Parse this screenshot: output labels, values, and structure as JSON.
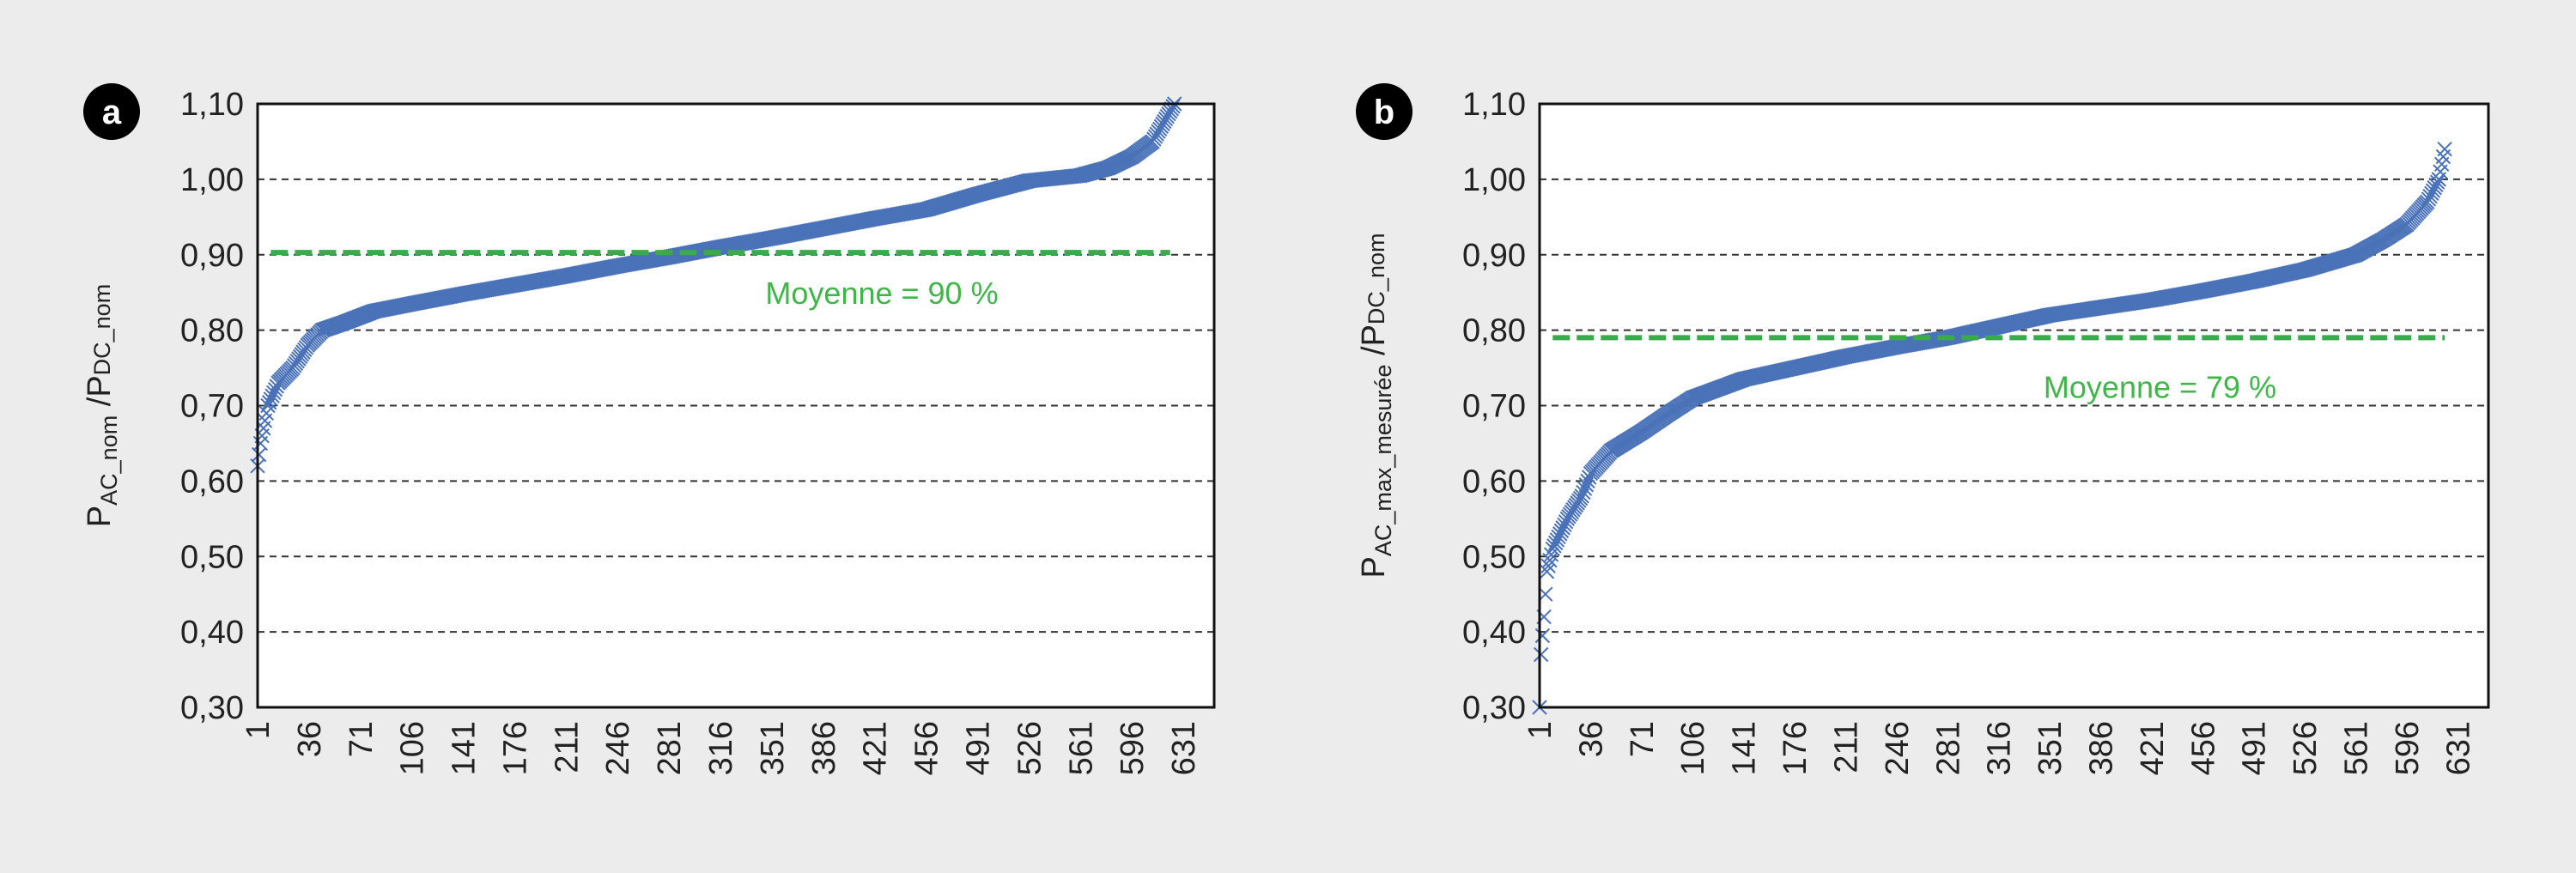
{
  "chart_data": [
    {
      "type": "scatter",
      "panel_label": "a",
      "ylabel": {
        "main1": "P",
        "sub1": "AC_nom",
        "main2": " /P",
        "sub2": "DC_nom"
      },
      "ylim": [
        0.3,
        1.1
      ],
      "xlim": [
        1,
        652
      ],
      "y_ticks": [
        "0,30",
        "0,40",
        "0,50",
        "0,60",
        "0,70",
        "0,80",
        "0,90",
        "1,00",
        "1,10"
      ],
      "x_ticks": [
        "1",
        "36",
        "71",
        "106",
        "141",
        "176",
        "211",
        "246",
        "281",
        "316",
        "351",
        "386",
        "421",
        "456",
        "491",
        "526",
        "561",
        "596",
        "631"
      ],
      "grid": "horizontal dashed",
      "marker": "x",
      "n_points": 625,
      "points": [
        [
          1,
          0.62
        ],
        [
          3,
          0.65
        ],
        [
          8,
          0.7
        ],
        [
          15,
          0.73
        ],
        [
          25,
          0.75
        ],
        [
          35,
          0.78
        ],
        [
          45,
          0.8
        ],
        [
          60,
          0.81
        ],
        [
          80,
          0.825
        ],
        [
          106,
          0.835
        ],
        [
          141,
          0.848
        ],
        [
          176,
          0.86
        ],
        [
          211,
          0.872
        ],
        [
          246,
          0.885
        ],
        [
          281,
          0.897
        ],
        [
          316,
          0.91
        ],
        [
          351,
          0.922
        ],
        [
          386,
          0.935
        ],
        [
          421,
          0.948
        ],
        [
          456,
          0.96
        ],
        [
          491,
          0.98
        ],
        [
          526,
          0.998
        ],
        [
          561,
          1.005
        ],
        [
          580,
          1.015
        ],
        [
          596,
          1.03
        ],
        [
          610,
          1.05
        ],
        [
          625,
          1.1
        ]
      ],
      "mean": {
        "value": 0.903,
        "label": "Moyenne = 90 %"
      }
    },
    {
      "type": "scatter",
      "panel_label": "b",
      "ylabel": {
        "main1": "P",
        "sub1": "AC_max_mesurée",
        "main2": " /P",
        "sub2": "DC_nom"
      },
      "ylim": [
        0.3,
        1.1
      ],
      "xlim": [
        1,
        652
      ],
      "y_ticks": [
        "0,30",
        "0,40",
        "0,50",
        "0,60",
        "0,70",
        "0,80",
        "0,90",
        "1,00",
        "1,10"
      ],
      "x_ticks": [
        "1",
        "36",
        "71",
        "106",
        "141",
        "176",
        "211",
        "246",
        "281",
        "316",
        "351",
        "386",
        "421",
        "456",
        "491",
        "526",
        "561",
        "596",
        "631"
      ],
      "grid": "horizontal dashed",
      "marker": "x",
      "n_points": 622,
      "points": [
        [
          1,
          0.3
        ],
        [
          2,
          0.37
        ],
        [
          4,
          0.42
        ],
        [
          6,
          0.48
        ],
        [
          10,
          0.51
        ],
        [
          20,
          0.55
        ],
        [
          30,
          0.58
        ],
        [
          36,
          0.61
        ],
        [
          50,
          0.64
        ],
        [
          71,
          0.665
        ],
        [
          90,
          0.69
        ],
        [
          106,
          0.71
        ],
        [
          141,
          0.735
        ],
        [
          176,
          0.75
        ],
        [
          211,
          0.765
        ],
        [
          246,
          0.778
        ],
        [
          281,
          0.79
        ],
        [
          316,
          0.805
        ],
        [
          351,
          0.82
        ],
        [
          386,
          0.83
        ],
        [
          421,
          0.84
        ],
        [
          456,
          0.852
        ],
        [
          491,
          0.865
        ],
        [
          526,
          0.88
        ],
        [
          561,
          0.9
        ],
        [
          580,
          0.92
        ],
        [
          596,
          0.94
        ],
        [
          610,
          0.97
        ],
        [
          618,
          1.0
        ],
        [
          622,
          1.04
        ]
      ],
      "mean": {
        "value": 0.79,
        "label": "Moyenne = 79 %"
      }
    }
  ],
  "colors": {
    "series": "#4a72b8",
    "mean": "#3aaa4a",
    "mean_text": "#3fb54a",
    "background": "#ececec"
  }
}
